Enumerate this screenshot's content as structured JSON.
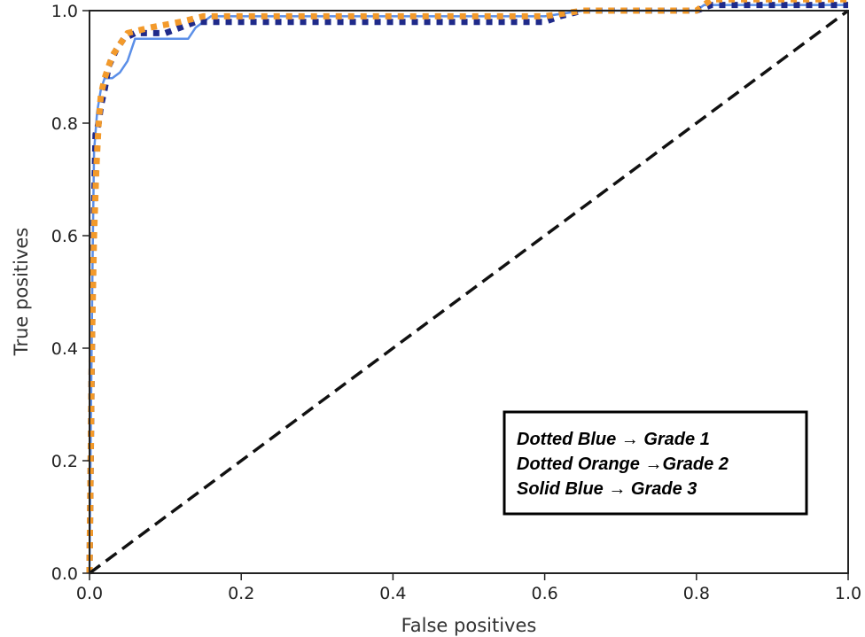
{
  "chart_data": {
    "type": "line",
    "xlabel": "False positives",
    "ylabel": "True positives",
    "xlim": [
      0.0,
      1.0
    ],
    "ylim": [
      0.0,
      1.0
    ],
    "xticks": [
      "0.0",
      "0.2",
      "0.4",
      "0.6",
      "0.8",
      "1.0"
    ],
    "yticks": [
      "0.0",
      "0.2",
      "0.4",
      "0.6",
      "0.8",
      "1.0"
    ],
    "grid": false,
    "legend": {
      "placement": "lower-right",
      "entries": [
        "Dotted Blue → Grade 1",
        "Dotted Orange →Grade 2",
        "Solid Blue → Grade 3"
      ]
    },
    "series": [
      {
        "color": "#1f2a8a",
        "style": "dotted",
        "x": [
          0.0,
          0.002,
          0.004,
          0.006,
          0.008,
          0.012,
          0.015,
          0.02,
          0.025,
          0.035,
          0.045,
          0.06,
          0.1,
          0.14,
          0.16,
          0.3,
          0.5,
          0.6,
          0.62,
          0.65,
          0.8,
          0.82,
          1.0
        ],
        "y": [
          0.0,
          0.25,
          0.5,
          0.65,
          0.78,
          0.8,
          0.83,
          0.86,
          0.9,
          0.93,
          0.95,
          0.96,
          0.96,
          0.98,
          0.98,
          0.98,
          0.98,
          0.98,
          0.99,
          1.0,
          1.0,
          1.01,
          1.01
        ]
      },
      {
        "color": "#f39a2b",
        "style": "dotted",
        "x": [
          0.0,
          0.003,
          0.006,
          0.009,
          0.012,
          0.015,
          0.02,
          0.03,
          0.04,
          0.05,
          0.08,
          0.12,
          0.15,
          0.3,
          0.5,
          0.6,
          0.65,
          0.8,
          0.82,
          1.0
        ],
        "y": [
          0.0,
          0.4,
          0.6,
          0.72,
          0.8,
          0.85,
          0.88,
          0.92,
          0.94,
          0.96,
          0.97,
          0.98,
          0.99,
          0.99,
          0.99,
          0.99,
          1.0,
          1.0,
          1.02,
          1.02
        ]
      },
      {
        "color": "#5b8fe8",
        "style": "solid",
        "x": [
          0.0,
          0.002,
          0.004,
          0.006,
          0.01,
          0.015,
          0.02,
          0.03,
          0.04,
          0.05,
          0.06,
          0.13,
          0.14,
          0.16,
          0.3,
          0.5,
          0.6,
          0.65,
          0.8,
          0.81,
          1.0
        ],
        "y": [
          0.0,
          0.3,
          0.55,
          0.75,
          0.82,
          0.86,
          0.88,
          0.88,
          0.89,
          0.91,
          0.95,
          0.95,
          0.97,
          0.99,
          0.99,
          0.99,
          0.99,
          1.0,
          1.0,
          1.01,
          1.01
        ]
      },
      {
        "color": "#111111",
        "style": "dashed",
        "x": [
          0.0,
          1.0
        ],
        "y": [
          0.0,
          1.0
        ]
      }
    ]
  }
}
